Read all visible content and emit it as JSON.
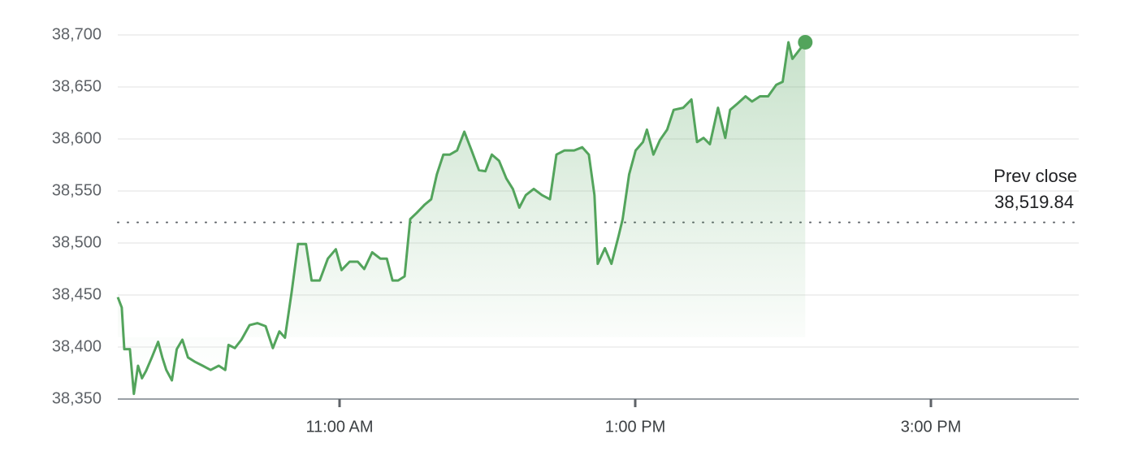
{
  "chart_data": {
    "type": "line",
    "x": [
      9.5,
      9.527,
      9.544,
      9.582,
      9.609,
      9.637,
      9.664,
      9.691,
      9.73,
      9.773,
      9.801,
      9.828,
      9.866,
      9.899,
      9.937,
      9.975,
      10.019,
      10.074,
      10.128,
      10.183,
      10.227,
      10.249,
      10.292,
      10.336,
      10.391,
      10.445,
      10.5,
      10.549,
      10.593,
      10.631,
      10.675,
      10.719,
      10.773,
      10.811,
      10.866,
      10.921,
      10.975,
      11.014,
      11.068,
      11.123,
      11.167,
      11.221,
      11.276,
      11.32,
      11.358,
      11.396,
      11.44,
      11.478,
      11.522,
      11.577,
      11.62,
      11.658,
      11.702,
      11.746,
      11.795,
      11.844,
      11.893,
      11.943,
      11.986,
      12.03,
      12.079,
      12.128,
      12.172,
      12.216,
      12.26,
      12.314,
      12.369,
      12.423,
      12.467,
      12.522,
      12.587,
      12.642,
      12.686,
      12.724,
      12.746,
      12.795,
      12.839,
      12.888,
      12.915,
      12.959,
      13.003,
      13.052,
      13.079,
      13.123,
      13.167,
      13.216,
      13.26,
      13.325,
      13.38,
      13.418,
      13.462,
      13.505,
      13.56,
      13.609,
      13.642,
      13.691,
      13.746,
      13.79,
      13.844,
      13.899,
      13.954,
      13.997,
      14.036,
      14.063,
      14.107,
      14.15
    ],
    "series": [
      {
        "color": "#53a45c",
        "values": [
          38448,
          38438,
          38398,
          38398,
          38355,
          38382,
          38370,
          38377,
          38390,
          38405,
          38390,
          38378,
          38368,
          38398,
          38407,
          38390,
          38386,
          38382,
          38378,
          38382,
          38378,
          38402,
          38399,
          38407,
          38421,
          38423,
          38420,
          38399,
          38415,
          38409,
          38452,
          38499,
          38499,
          38464,
          38464,
          38485,
          38494,
          38474,
          38482,
          38482,
          38475,
          38491,
          38485,
          38485,
          38464,
          38464,
          38468,
          38523,
          38529,
          38537,
          38542,
          38566,
          38585,
          38585,
          38589,
          38607,
          38589,
          38570,
          38569,
          38585,
          38579,
          38562,
          38552,
          38534,
          38546,
          38552,
          38546,
          38542,
          38585,
          38589,
          38589,
          38592,
          38585,
          38546,
          38480,
          38495,
          38480,
          38507,
          38523,
          38566,
          38589,
          38597,
          38609,
          38585,
          38599,
          38609,
          38628,
          38630,
          38638,
          38597,
          38601,
          38595,
          38630,
          38601,
          38628,
          38634,
          38641,
          38636,
          38641,
          38641,
          38652,
          38655,
          38693,
          38677,
          38685,
          38693
        ]
      }
    ],
    "xlim": [
      9.5,
      16
    ],
    "xticks": [
      {
        "value": 11,
        "label": "11:00 AM"
      },
      {
        "value": 13,
        "label": "1:00 PM"
      },
      {
        "value": 15,
        "label": "3:00 PM"
      }
    ],
    "ylim": [
      38350,
      38700
    ],
    "yticks": [
      {
        "value": 38350,
        "label": "38,350"
      },
      {
        "value": 38400,
        "label": "38,400"
      },
      {
        "value": 38450,
        "label": "38,450"
      },
      {
        "value": 38500,
        "label": "38,500"
      },
      {
        "value": 38550,
        "label": "38,550"
      },
      {
        "value": 38600,
        "label": "38,600"
      },
      {
        "value": 38650,
        "label": "38,650"
      },
      {
        "value": 38700,
        "label": "38,700"
      }
    ],
    "grid": true,
    "prev_close": {
      "label": "Prev close",
      "value": 38519.84,
      "value_label": "38,519.84"
    }
  }
}
